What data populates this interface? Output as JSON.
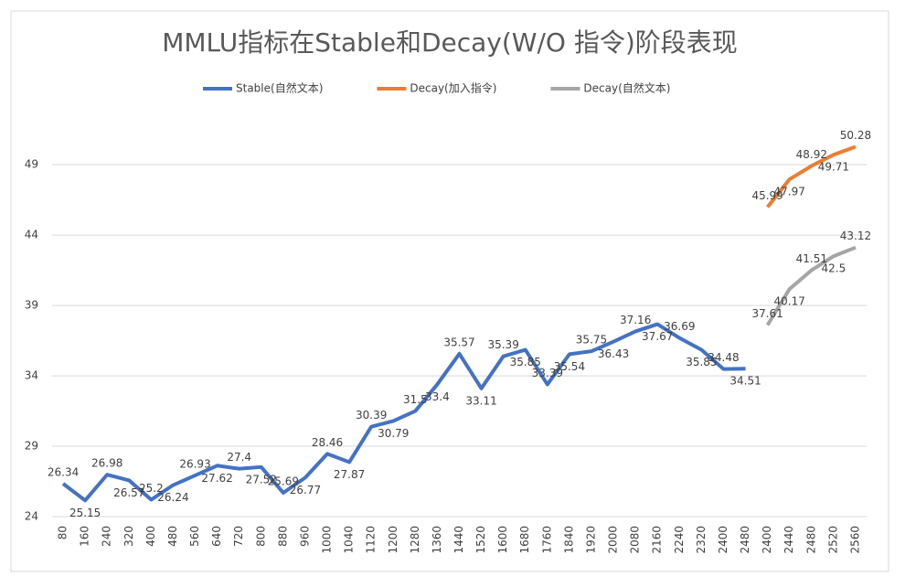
{
  "chart_data": {
    "type": "line",
    "title": "MMLU指标在Stable和Decay(W/O 指令)阶段表现",
    "categories": [
      "80",
      "160",
      "240",
      "320",
      "400",
      "480",
      "560",
      "640",
      "720",
      "800",
      "880",
      "960",
      "1000",
      "1040",
      "1120",
      "1200",
      "1280",
      "1360",
      "1440",
      "1520",
      "1600",
      "1680",
      "1760",
      "1840",
      "1920",
      "2000",
      "2080",
      "2160",
      "2240",
      "2320",
      "2400",
      "2480",
      "2400",
      "2440",
      "2480",
      "2520",
      "2560"
    ],
    "series": [
      {
        "name": "Stable(自然文本)",
        "color": "#4472c4",
        "values": [
          26.34,
          25.15,
          26.98,
          26.57,
          25.2,
          26.24,
          26.93,
          27.62,
          27.4,
          27.52,
          25.69,
          26.77,
          28.46,
          27.87,
          30.39,
          30.79,
          31.5,
          33.4,
          35.57,
          33.11,
          35.39,
          35.85,
          33.39,
          35.54,
          35.75,
          36.43,
          37.16,
          37.67,
          36.69,
          35.85,
          34.48,
          34.51,
          null,
          null,
          null,
          null,
          null
        ]
      },
      {
        "name": "Decay(加入指令)",
        "color": "#ed7d31",
        "values": [
          null,
          null,
          null,
          null,
          null,
          null,
          null,
          null,
          null,
          null,
          null,
          null,
          null,
          null,
          null,
          null,
          null,
          null,
          null,
          null,
          null,
          null,
          null,
          null,
          null,
          null,
          null,
          null,
          null,
          null,
          null,
          null,
          45.99,
          47.97,
          48.92,
          49.71,
          50.28
        ]
      },
      {
        "name": "Decay(自然文本)",
        "color": "#a5a5a5",
        "values": [
          null,
          null,
          null,
          null,
          null,
          null,
          null,
          null,
          null,
          null,
          null,
          null,
          null,
          null,
          null,
          null,
          null,
          null,
          null,
          null,
          null,
          null,
          null,
          null,
          null,
          null,
          null,
          null,
          null,
          null,
          null,
          null,
          37.61,
          40.17,
          41.51,
          42.5,
          43.12
        ]
      }
    ],
    "ylim": [
      24,
      52
    ],
    "yticks": [
      24,
      29,
      34,
      39,
      44,
      49
    ],
    "grid": true,
    "legend": "top"
  }
}
